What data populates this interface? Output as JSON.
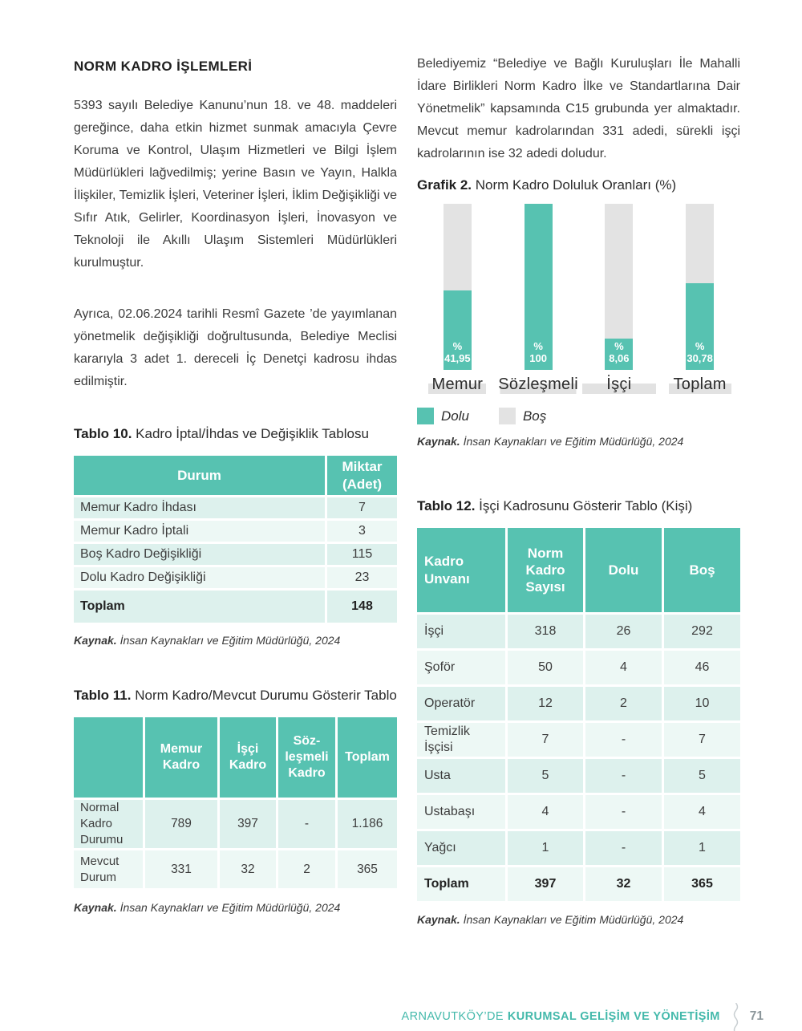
{
  "theme": {
    "accent_teal": "#57C2B1",
    "row_shade_a": "#DDF1ED",
    "row_shade_b": "#EDF8F5",
    "chart_gray": "#E3E3E3",
    "footer_teal": "#44B9AB",
    "page_number_gray": "#8C979B"
  },
  "left": {
    "heading": "NORM KADRO İŞLEMLERİ",
    "para1": "5393 sayılı Belediye Kanunu’nun 18. ve 48. maddeleri gereğince, daha etkin hizmet sunmak amacıyla Çevre Koruma ve Kontrol, Ulaşım Hizmetleri ve Bilgi İşlem Müdürlükleri lağvedilmiş; yerine Basın ve Yayın, Halkla İlişkiler, Temizlik İşleri, Veteriner İşleri, İklim Değişikliği ve Sıfır Atık, Gelirler, Koordinasyon İşleri, İnovasyon ve Teknoloji ile Akıllı Ulaşım Sistemleri Müdürlükleri kurulmuştur.",
    "para2": "Ayrıca, 02.06.2024 tarihli Resmî Gazete ’de yayımlanan yönetmelik değişikliği doğrultusunda, Belediye Meclisi kararıyla 3 adet 1. dereceli İç Denetçi kadrosu ihdas edilmiştir.",
    "tablo10": {
      "caption_label": "Tablo 10.",
      "caption_text": "Kadro İptal/İhdas ve Değişiklik Tablosu",
      "col_headers": [
        "Durum",
        "Miktar (Adet)"
      ],
      "rows": [
        [
          "Memur Kadro İhdası",
          "7"
        ],
        [
          "Memur Kadro İptali",
          "3"
        ],
        [
          "Boş Kadro Değişikliği",
          "115"
        ],
        [
          "Dolu Kadro Değişikliği",
          "23"
        ]
      ],
      "total": [
        "Toplam",
        "148"
      ]
    },
    "tablo11": {
      "caption_label": "Tablo 11.",
      "caption_text": "Norm Kadro/Mevcut Durumu Gösterir Tablo",
      "col_headers": [
        "",
        "Memur Kadro",
        "İşçi Kadro",
        "Söz-leşmeli Kadro",
        "Toplam"
      ],
      "rows": [
        [
          "Normal Kadro Durumu",
          "789",
          "397",
          "-",
          "1.186"
        ],
        [
          "Mevcut Durum",
          "331",
          "32",
          "2",
          "365"
        ]
      ]
    }
  },
  "right": {
    "para1": "Belediyemiz “Belediye ve Bağlı Kuruluşları İle Mahalli İdare Birlikleri Norm Kadro İlke ve Standartlarına Dair Yönetmelik” kapsamında C15 grubunda yer almaktadır. Mevcut memur kadrolarından 331 adedi, sürekli işçi kadrolarının ise 32 adedi doludur.",
    "grafik2": {
      "caption_label": "Grafik 2.",
      "caption_text": "Norm Kadro Doluluk Oranları (%)"
    },
    "tablo12": {
      "caption_label": "Tablo 12.",
      "caption_text": "İşçi Kadrosunu Gösterir Tablo (Kişi)",
      "col_headers": [
        "Kadro Unvanı",
        "Norm Kadro Sayısı",
        "Dolu",
        "Boş"
      ],
      "rows": [
        [
          "İşçi",
          "318",
          "26",
          "292"
        ],
        [
          "Şoför",
          "50",
          "4",
          "46"
        ],
        [
          "Operatör",
          "12",
          "2",
          "10"
        ],
        [
          "Temizlik İşçisi",
          "7",
          "-",
          "7"
        ],
        [
          "Usta",
          "5",
          "-",
          "5"
        ],
        [
          "Ustabaşı",
          "4",
          "-",
          "4"
        ],
        [
          "Yağcı",
          "1",
          "-",
          "1"
        ]
      ],
      "total": [
        "Toplam",
        "397",
        "32",
        "365"
      ]
    }
  },
  "source": {
    "label": "Kaynak.",
    "text": "İnsan Kaynakları ve Eğitim Müdürlüğü, 2024"
  },
  "footer": {
    "location": "ARNAVUTKÖY’DE",
    "title": "KURUMSAL GELİŞİM VE YÖNETİŞİM",
    "page_number": "71"
  },
  "chart_data": {
    "type": "bar",
    "subtype": "stacked-100-percent",
    "title": "Grafik 2. Norm Kadro Doluluk Oranları (%)",
    "categories": [
      "Memur",
      "Sözleşmeli",
      "İşçi",
      "Toplam"
    ],
    "series": [
      {
        "name": "Dolu",
        "values": [
          41.95,
          100,
          8.06,
          30.78
        ]
      },
      {
        "name": "Boş",
        "values": [
          58.05,
          0,
          91.94,
          69.22
        ]
      }
    ],
    "bar_label_line1": "%",
    "bar_label_line2": [
      "41,95",
      "100",
      "8,06",
      "30,78"
    ],
    "bar_value_labels": [
      "% 41,95",
      "% 100",
      "% 8,06",
      "% 30,78"
    ],
    "legend": [
      "Dolu",
      "Boş"
    ],
    "legend_position": "bottom-left",
    "ylim": [
      0,
      100
    ],
    "grid": false,
    "bar_fill_visual_pct": [
      48,
      100,
      19,
      52
    ],
    "source": "Kaynak. İnsan Kaynakları ve Eğitim Müdürlüğü, 2024"
  }
}
